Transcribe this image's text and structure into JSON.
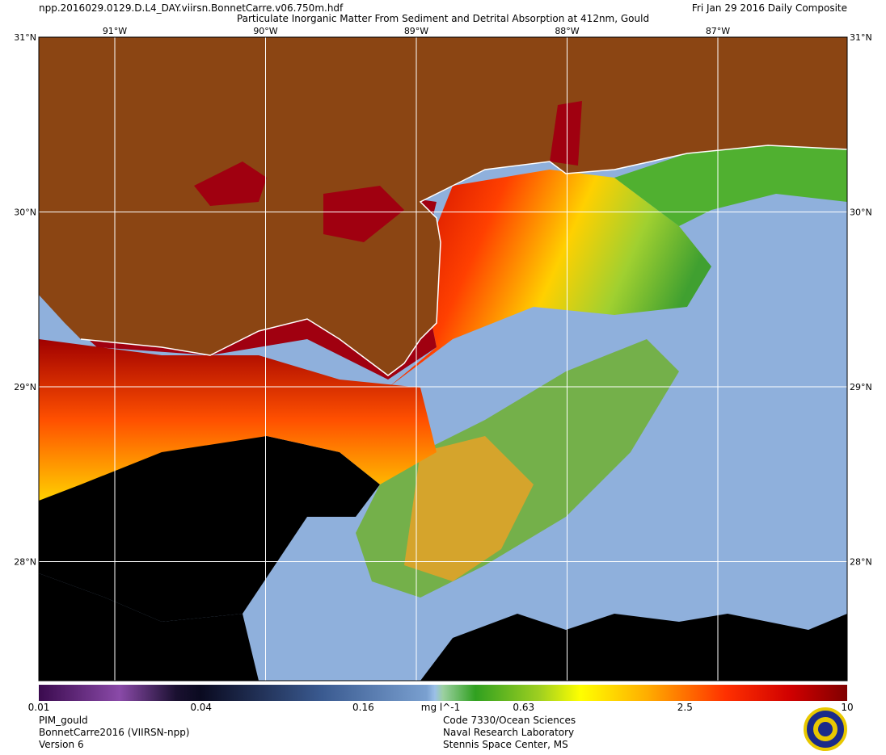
{
  "header": {
    "filename": "npp.2016029.0129.D.L4_DAY.viirsn.BonnetCarre.v06.750m.hdf",
    "title": "Particulate Inorganic Matter From Sediment and Detrital Absorption at 412nm, Gould",
    "date": "Fri Jan 29 2016 Daily Composite"
  },
  "map": {
    "lon_grid": [
      {
        "value": -91,
        "label": "91°W"
      },
      {
        "value": -90,
        "label": "90°W"
      },
      {
        "value": -89,
        "label": "89°W"
      },
      {
        "value": -88,
        "label": "88°W"
      },
      {
        "value": -87,
        "label": "87°W"
      }
    ],
    "lat_grid": [
      {
        "value": 31,
        "label": "31°N"
      },
      {
        "value": 30,
        "label": "30°N"
      },
      {
        "value": 29,
        "label": "29°N"
      },
      {
        "value": 28,
        "label": "28°N"
      }
    ]
  },
  "colorbar": {
    "scale": "log",
    "range": [
      0.01,
      10
    ],
    "ticks": [
      0.01,
      0.04,
      0.16,
      0.63,
      2.5,
      10
    ],
    "unit": "mg l^-1"
  },
  "footer": {
    "left": [
      "PIM_gould",
      "BonnetCarre2016 (VIIRSN-npp)",
      "Version 6"
    ],
    "right": [
      "Code 7330/Ocean Sciences",
      "Naval Research Laboratory",
      "Stennis Space Center, MS"
    ]
  }
}
